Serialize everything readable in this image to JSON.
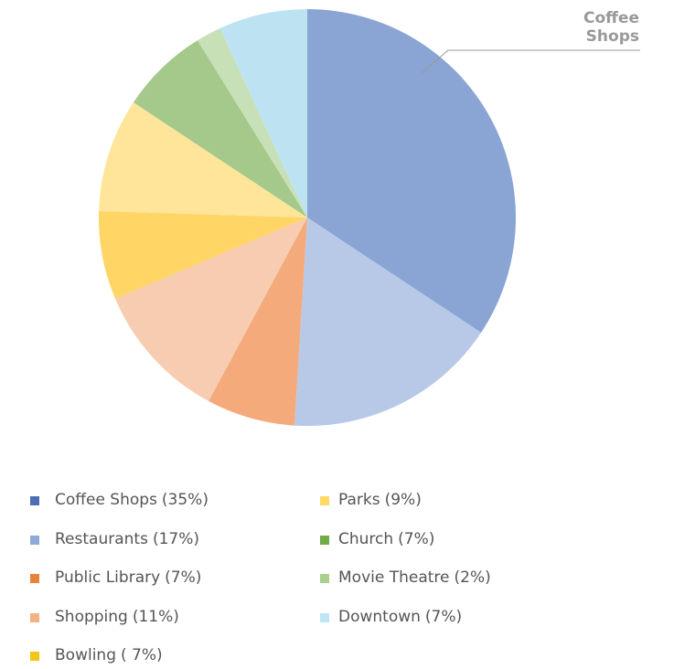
{
  "chart_data": {
    "type": "pie",
    "annotation": "Coffee Shops",
    "categories": [
      "Coffee Shops",
      "Restaurants",
      "Public Library",
      "Shopping",
      "Bowling",
      "Parks",
      "Church",
      "Movie Theatre",
      "Downtown"
    ],
    "values": [
      35,
      17,
      7,
      11,
      7,
      9,
      7,
      2,
      7
    ],
    "value_labels": [
      "(35%)",
      "(17%)",
      "(7%)",
      "(11%)",
      "( 7%)",
      "(9%)",
      "(7%)",
      "(2%)",
      "(7%)"
    ],
    "colors": [
      "#8aa4d4",
      "#b8c9e8",
      "#f4aa7a",
      "#f7ccb0",
      "#ffd566",
      "#fee599",
      "#a5c98a",
      "#c8e0b8",
      "#bde3f3"
    ],
    "legend_colors": [
      "#4a6fb3",
      "#8ea9d8",
      "#e8833a",
      "#f4b183",
      "#f5c518",
      "#ffd966",
      "#70ad47",
      "#a9d18e",
      "#bde5f5"
    ]
  }
}
